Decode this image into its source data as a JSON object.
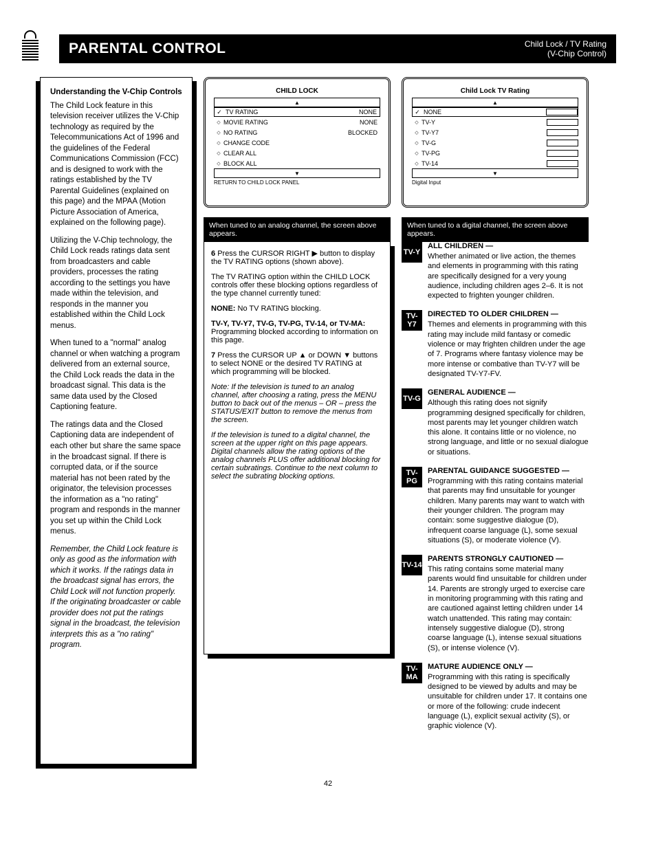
{
  "header": {
    "title": "PARENTAL CONTROL",
    "subtitle_line1": "Child Lock / TV Rating",
    "subtitle_line2": "(V-Chip Control)"
  },
  "left": {
    "h": "Understanding the V-Chip Controls",
    "paragraphs": [
      "The Child Lock feature in this television receiver utilizes the V-Chip technology as required by the Telecommunications Act of 1996 and the guidelines of the Federal Communications Commission (FCC) and is designed to work with the ratings established by the TV Parental Guidelines (explained on this page) and the MPAA (Motion Picture Association of America, explained on the following page).",
      "Utilizing the V-Chip technology, the Child Lock reads ratings data sent from broadcasters and cable providers, processes the rating according to the settings you have made within the television, and responds in the manner you established within the Child Lock menus.",
      "When tuned to a \"normal\" analog channel or when watching a program delivered from an external source, the Child Lock reads the data in the broadcast signal. This data is the same data used by the Closed Captioning feature.",
      "The ratings data and the Closed Captioning data are independent of each other but share the same space in the broadcast signal. If there is corrupted data, or if the source material has not been rated by the originator, the television processes the information as a \"no rating\" program and responds in the manner you set up within the Child Lock menus.",
      "Remember, the Child Lock feature is only as good as the information with which it works. If the ratings data in the broadcast signal has errors, the Child Lock will not function properly. If the originating broadcaster or cable provider does not put the ratings signal in the broadcast, the television interprets this as a \"no rating\" program."
    ]
  },
  "screen1": {
    "title": "CHILD LOCK",
    "top_btn": "▲",
    "sel_label": "TV RATING",
    "sel_value": "NONE",
    "options": [
      {
        "label": "MOVIE RATING",
        "value": "NONE"
      },
      {
        "label": "NO RATING",
        "value": "BLOCKED"
      },
      {
        "label": "CHANGE CODE",
        "value": ""
      },
      {
        "label": "CLEAR ALL",
        "value": ""
      },
      {
        "label": "BLOCK ALL",
        "value": ""
      }
    ],
    "bot_btn": "▼",
    "hint": "RETURN TO CHILD LOCK PANEL"
  },
  "screen2": {
    "title": "Child Lock    TV Rating",
    "top_btn": "▲",
    "sel_label": "NONE",
    "sel_value": "",
    "options": [
      {
        "label": "TV-Y",
        "value": ""
      },
      {
        "label": "TV-Y7",
        "value": ""
      },
      {
        "label": "TV-G",
        "value": ""
      },
      {
        "label": "TV-PG",
        "value": ""
      },
      {
        "label": "TV-14",
        "value": ""
      }
    ],
    "bot_btn": "▼",
    "hint": "Digital Input"
  },
  "mid": {
    "result": "When tuned to an analog channel, the screen above appears.",
    "steps": [
      {
        "t": "Press the CURSOR RIGHT ▶ button to display the TV RATING options (shown above).",
        "p": []
      },
      {
        "t": "",
        "p": [
          "The TV RATING option within the CHILD LOCK controls offer these blocking options regardless of the type channel currently tuned:"
        ]
      },
      {
        "t": "",
        "p": [
          "NONE: No TV RATING blocking."
        ]
      },
      {
        "t": "",
        "p": [
          "TV-Y, TV-Y7, TV-G, TV-PG, TV-14, or TV-MA: Programming blocked according to information on this page."
        ]
      },
      {
        "t": "Press the CURSOR UP ▲ or DOWN ▼ buttons to select NONE or the desired TV RATING at which programming will be blocked.",
        "p": []
      },
      {
        "t": "",
        "p": [
          "Note: If the television is tuned to an analog channel, after choosing a rating, press the MENU button to back out of the menus – OR – press the STATUS/EXIT button to remove the menus from the screen."
        ]
      },
      {
        "t": "",
        "p": [
          "If the television is tuned to a digital channel, the screen at the upper right on this page appears. Digital channels allow the rating options of the analog channels PLUS offer additional blocking for certain subratings. Continue to the next column to select the subrating blocking options."
        ]
      }
    ]
  },
  "right": {
    "result": "When tuned to a digital channel, the screen above appears.",
    "ratings": [
      {
        "badge": "TV-Y",
        "h": "ALL CHILDREN —",
        "p": "Whether animated or live action, the themes and elements in programming with this rating are specifically designed for a very young audience, including children ages 2–6. It is not expected to frighten younger children."
      },
      {
        "badge": "TV-Y7",
        "h": "DIRECTED TO OLDER CHILDREN —",
        "p": "Themes and elements in programming with this rating may include mild fantasy or comedic violence or may frighten children under the age of 7. Programs where fantasy violence may be more intense or combative than TV-Y7 will be designated TV-Y7-FV."
      },
      {
        "badge": "TV-G",
        "h": "GENERAL AUDIENCE —",
        "p": "Although this rating does not signify programming designed specifically for children, most parents may let younger children watch this alone. It contains little or no violence, no strong language, and little or no sexual dialogue or situations."
      },
      {
        "badge": "TV-PG",
        "h": "PARENTAL GUIDANCE SUGGESTED —",
        "p": "Programming with this rating contains material that parents may find unsuitable for younger children. Many parents may want to watch with their younger children. The program may contain: some suggestive dialogue (D), infrequent coarse language (L), some sexual situations (S), or moderate violence (V)."
      },
      {
        "badge": "TV-14",
        "h": "PARENTS STRONGLY CAUTIONED —",
        "p": "This rating contains some material many parents would find unsuitable for children under 14. Parents are strongly urged to exercise care in monitoring programming with this rating and are cautioned against letting children under 14 watch unattended. This rating may contain: intensely suggestive dialogue (D), strong coarse language (L), intense sexual situations (S), or intense violence (V)."
      },
      {
        "badge": "TV-MA",
        "h": "MATURE AUDIENCE ONLY —",
        "p": "Programming with this rating is specifically designed to be viewed by adults and may be unsuitable for children under 17. It contains one or more of the following: crude indecent language (L), explicit sexual activity (S), or graphic violence (V)."
      }
    ]
  },
  "page_number": "42"
}
